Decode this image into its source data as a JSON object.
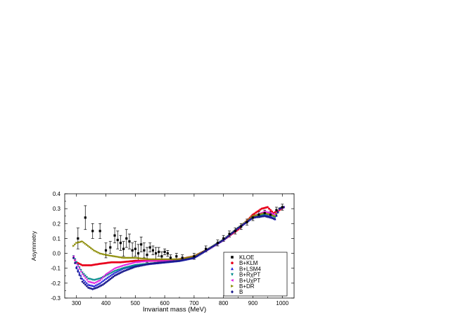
{
  "chart_data": {
    "type": "scatter",
    "xlabel": "Invariant mass (MeV)",
    "ylabel": "Asymmetry",
    "xlim": [
      260,
      1040
    ],
    "ylim": [
      -0.3,
      0.4
    ],
    "xticks": [
      300,
      400,
      500,
      600,
      700,
      800,
      900,
      1000
    ],
    "yticks": [
      -0.3,
      -0.2,
      -0.1,
      0.0,
      0.1,
      0.2,
      0.3,
      0.4
    ],
    "ytick_labels": [
      "-0.3",
      "-0.2",
      "-0.1",
      "0.0",
      "0.1",
      "0.2",
      "0.3",
      "0.4"
    ],
    "grid": false,
    "legend_position": "bottom-right",
    "series": [
      {
        "name": "KLOE",
        "color": "#000000",
        "marker": "square",
        "x": [
          305,
          330,
          355,
          380,
          400,
          415,
          430,
          440,
          450,
          460,
          470,
          480,
          490,
          500,
          510,
          520,
          530,
          540,
          550,
          560,
          570,
          580,
          590,
          600,
          610,
          620,
          640,
          660,
          700,
          740,
          780,
          800,
          820,
          840,
          860,
          880,
          900,
          920,
          940,
          960,
          980,
          1000
        ],
        "y": [
          0.1,
          0.24,
          0.15,
          0.15,
          0.02,
          0.04,
          0.12,
          0.09,
          0.07,
          0.03,
          0.1,
          0.08,
          0.02,
          0.03,
          0.0,
          0.06,
          0.02,
          -0.01,
          0.04,
          0.02,
          0.0,
          0.01,
          -0.02,
          0.01,
          0.0,
          -0.03,
          -0.02,
          -0.03,
          -0.02,
          0.03,
          0.07,
          0.1,
          0.13,
          0.15,
          0.18,
          0.21,
          0.24,
          0.26,
          0.27,
          0.26,
          0.29,
          0.31
        ],
        "err": [
          0.07,
          0.08,
          0.05,
          0.05,
          0.05,
          0.04,
          0.05,
          0.06,
          0.05,
          0.05,
          0.06,
          0.05,
          0.05,
          0.05,
          0.06,
          0.05,
          0.05,
          0.05,
          0.03,
          0.03,
          0.04,
          0.03,
          0.03,
          0.02,
          0.02,
          0.02,
          0.02,
          0.02,
          0.02,
          0.02,
          0.02,
          0.02,
          0.02,
          0.02,
          0.02,
          0.02,
          0.02,
          0.02,
          0.02,
          0.02,
          0.02,
          0.02
        ]
      },
      {
        "name": "B+KLM",
        "color": "#e8001c",
        "marker": "circle",
        "x": [
          290,
          300,
          320,
          350,
          380,
          420,
          450,
          500,
          550,
          600,
          650,
          700,
          750,
          800,
          850,
          900,
          930,
          950,
          970,
          990,
          1005
        ],
        "y": [
          -0.03,
          -0.06,
          -0.08,
          -0.08,
          -0.07,
          -0.06,
          -0.06,
          -0.05,
          -0.05,
          -0.05,
          -0.04,
          -0.02,
          0.03,
          0.09,
          0.16,
          0.26,
          0.3,
          0.31,
          0.27,
          0.29,
          0.31
        ]
      },
      {
        "name": "B+LSM4",
        "color": "#1f1fd8",
        "marker": "triangle-up",
        "x": [
          290,
          300,
          320,
          340,
          360,
          380,
          400,
          430,
          460,
          500,
          550,
          600,
          650,
          700,
          750,
          800,
          850,
          900,
          940,
          960,
          975,
          990,
          1005
        ],
        "y": [
          -0.03,
          -0.09,
          -0.17,
          -0.21,
          -0.22,
          -0.2,
          -0.17,
          -0.13,
          -0.1,
          -0.08,
          -0.07,
          -0.06,
          -0.05,
          -0.03,
          0.03,
          0.09,
          0.17,
          0.24,
          0.26,
          0.25,
          0.23,
          0.3,
          0.31
        ]
      },
      {
        "name": "B+RχPT",
        "color": "#008a8a",
        "marker": "triangle-down",
        "x": [
          290,
          300,
          320,
          340,
          360,
          380,
          400,
          430,
          460,
          500,
          550,
          600,
          650,
          700,
          750,
          800,
          850,
          900,
          940,
          960,
          975,
          990,
          1005
        ],
        "y": [
          -0.02,
          -0.06,
          -0.13,
          -0.17,
          -0.18,
          -0.17,
          -0.15,
          -0.12,
          -0.1,
          -0.08,
          -0.07,
          -0.06,
          -0.05,
          -0.03,
          0.03,
          0.09,
          0.17,
          0.24,
          0.26,
          0.26,
          0.24,
          0.3,
          0.31
        ]
      },
      {
        "name": "B+UχPT",
        "color": "#e020e0",
        "marker": "triangle-left",
        "x": [
          290,
          300,
          320,
          340,
          360,
          380,
          400,
          430,
          460,
          500,
          550,
          600,
          650,
          700,
          750,
          800,
          850,
          900,
          940,
          960,
          975,
          990,
          1005
        ],
        "y": [
          -0.02,
          -0.07,
          -0.14,
          -0.19,
          -0.2,
          -0.18,
          -0.14,
          -0.1,
          -0.08,
          -0.06,
          -0.05,
          -0.05,
          -0.04,
          -0.02,
          0.03,
          0.09,
          0.17,
          0.25,
          0.28,
          0.27,
          0.26,
          0.3,
          0.31
        ]
      },
      {
        "name": "B+DR",
        "color": "#8a8a00",
        "marker": "triangle-right",
        "x": [
          290,
          300,
          320,
          340,
          360,
          380,
          400,
          430,
          460,
          500,
          550,
          600,
          650,
          700,
          750,
          800,
          850,
          900,
          940,
          960,
          975,
          990,
          1005
        ],
        "y": [
          0.05,
          0.07,
          0.08,
          0.05,
          0.02,
          0.0,
          -0.01,
          -0.02,
          -0.03,
          -0.03,
          -0.04,
          -0.04,
          -0.04,
          -0.02,
          0.03,
          0.09,
          0.17,
          0.25,
          0.27,
          0.26,
          0.25,
          0.3,
          0.31
        ]
      },
      {
        "name": "B",
        "color": "#1a1a8c",
        "marker": "diamond",
        "x": [
          290,
          300,
          320,
          340,
          355,
          370,
          390,
          410,
          430,
          460,
          500,
          550,
          600,
          650,
          700,
          750,
          800,
          850,
          900,
          940,
          960,
          975,
          990,
          1005
        ],
        "y": [
          -0.03,
          -0.1,
          -0.19,
          -0.23,
          -0.24,
          -0.23,
          -0.21,
          -0.18,
          -0.15,
          -0.12,
          -0.09,
          -0.07,
          -0.06,
          -0.05,
          -0.03,
          0.03,
          0.09,
          0.17,
          0.24,
          0.25,
          0.24,
          0.23,
          0.3,
          0.31
        ]
      }
    ]
  }
}
